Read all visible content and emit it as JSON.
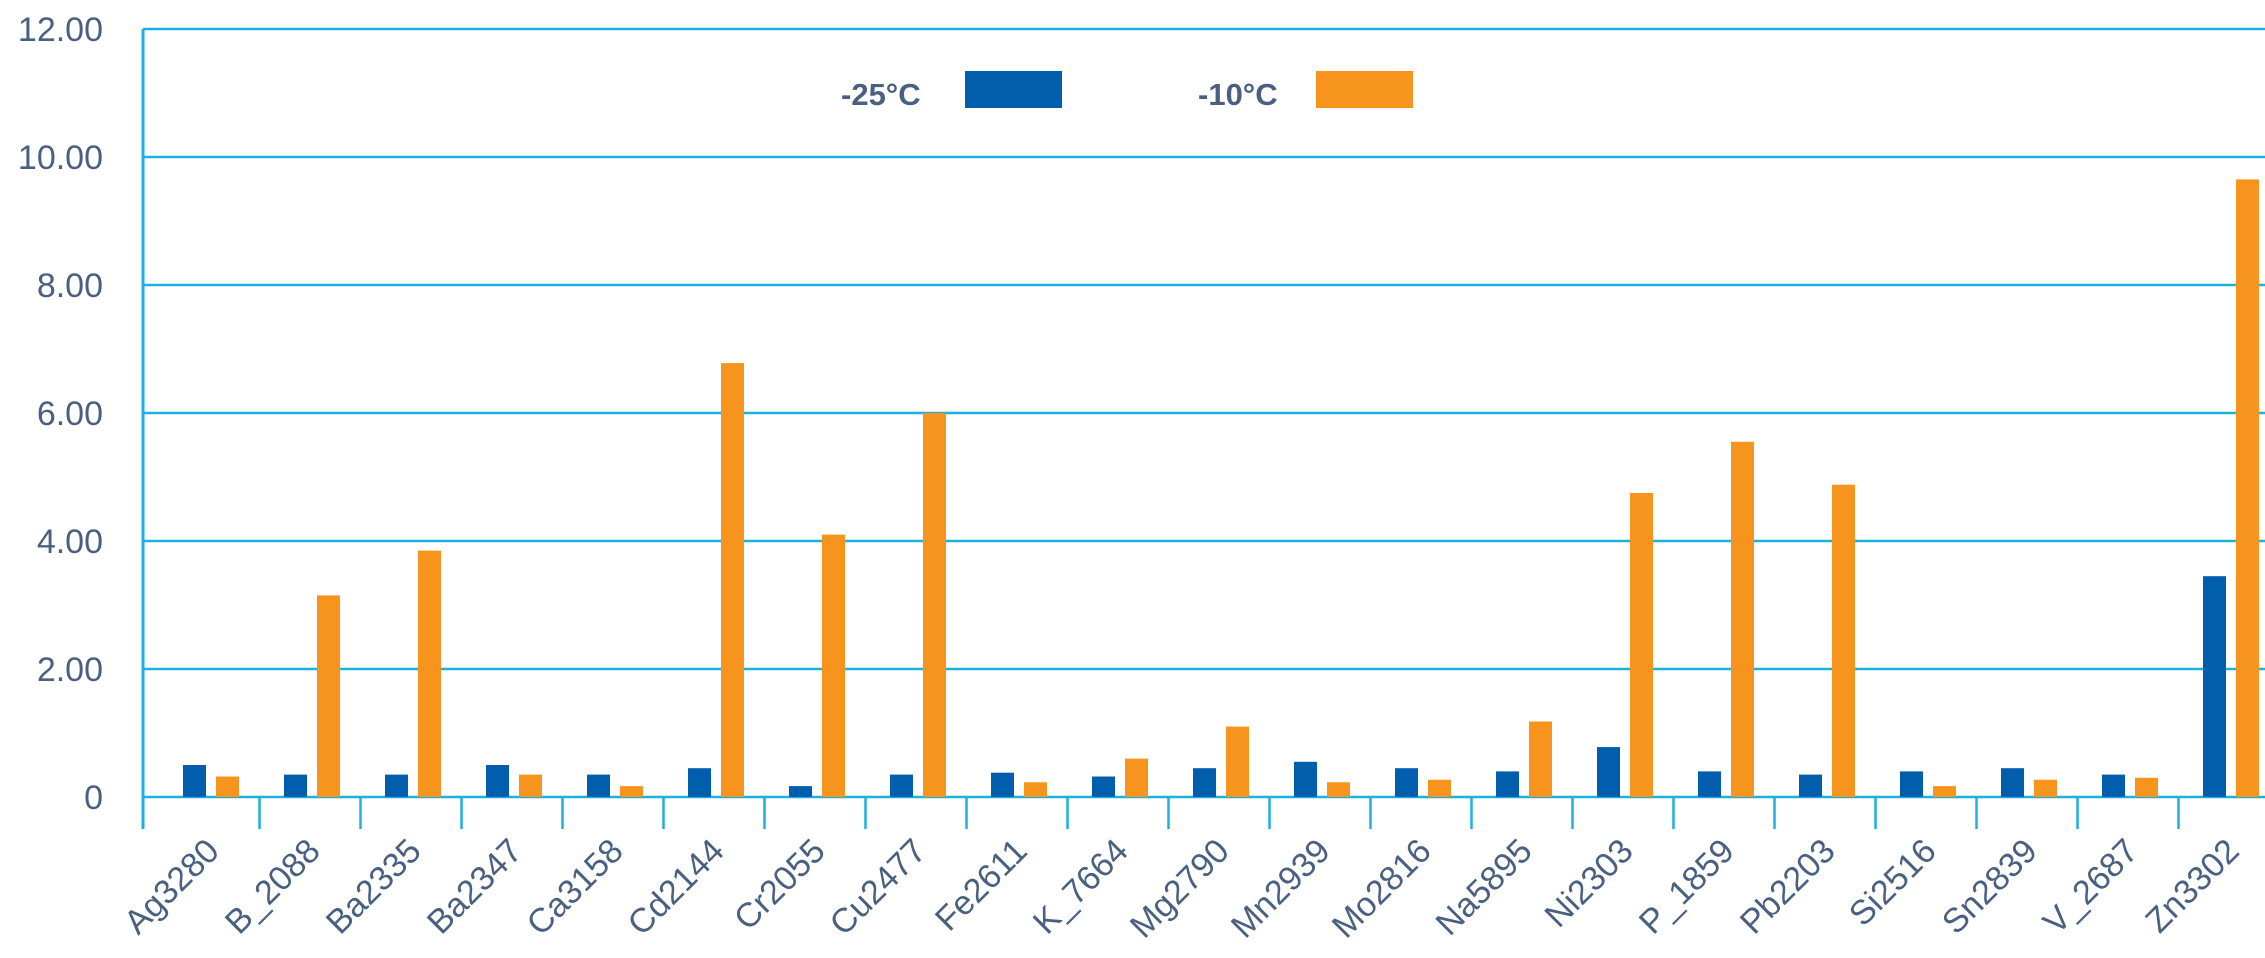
{
  "chart_data": {
    "type": "bar",
    "title": "",
    "xlabel": "",
    "ylabel": "",
    "ylim": [
      0,
      12
    ],
    "y_ticks": [
      0,
      2,
      4,
      6,
      8,
      10,
      12
    ],
    "y_tick_labels": [
      "0",
      "2.00",
      "4.00",
      "6.00",
      "8.00",
      "10.00",
      "12.00"
    ],
    "grid": true,
    "legend_position": "top-center",
    "categories": [
      "Ag3280",
      "B_2088",
      "Ba2335",
      "Ba2347",
      "Ca3158",
      "Cd2144",
      "Cr2055",
      "Cu2477",
      "Fe2611",
      "K_7664",
      "Mg2790",
      "Mn2939",
      "Mo2816",
      "Na5895",
      "Ni2303",
      "P_1859",
      "Pb2203",
      "Si2516",
      "Sn2839",
      "V_2687",
      "Zn3302"
    ],
    "series": [
      {
        "name": "-25°C",
        "color": "#005eac",
        "values": [
          0.5,
          0.35,
          0.35,
          0.5,
          0.35,
          0.45,
          0.17,
          0.35,
          0.38,
          0.32,
          0.45,
          0.55,
          0.45,
          0.4,
          0.78,
          0.4,
          0.35,
          0.4,
          0.45,
          0.35,
          3.45
        ]
      },
      {
        "name": "-10°C",
        "color": "#f7941d",
        "values": [
          0.32,
          3.15,
          3.85,
          0.35,
          0.17,
          6.78,
          4.1,
          6.0,
          0.23,
          0.6,
          1.1,
          0.23,
          0.27,
          1.18,
          4.75,
          5.55,
          4.88,
          0.17,
          0.27,
          0.3,
          9.65
        ]
      }
    ],
    "axis_color": "#1ab0e0",
    "grid_color": "#1ab0e0"
  }
}
